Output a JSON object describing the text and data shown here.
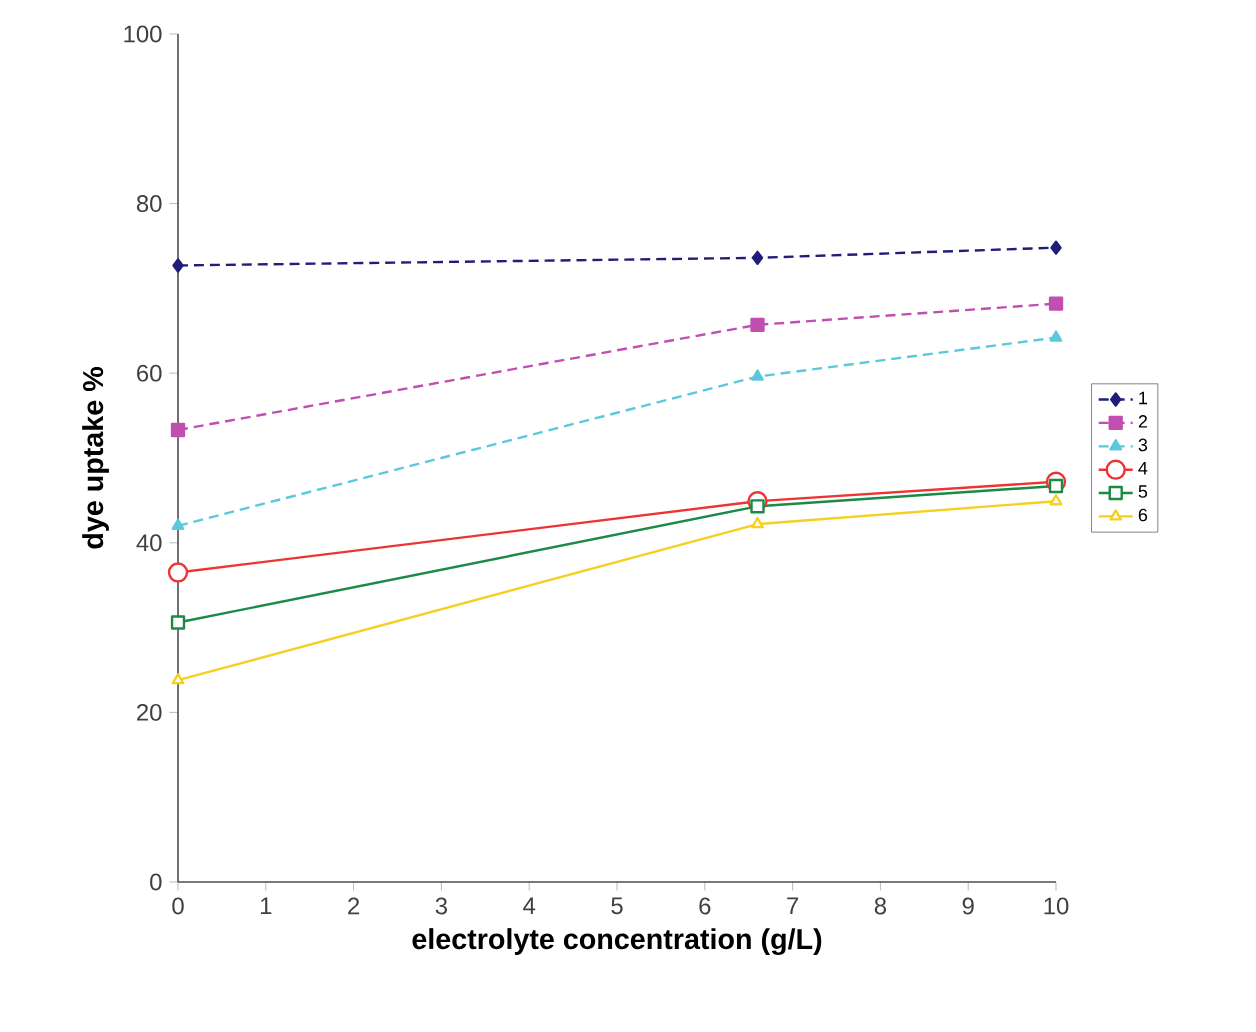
{
  "chart_data": {
    "type": "line",
    "xlabel": "electrolyte concentration (g/L)",
    "ylabel": "dye uptake %",
    "x": [
      0,
      6.6,
      10
    ],
    "xlim": [
      0,
      10
    ],
    "xticks": [
      0,
      1,
      2,
      3,
      4,
      5,
      6,
      7,
      8,
      9,
      10
    ],
    "ylim": [
      0,
      100
    ],
    "yticks": [
      0,
      20,
      40,
      60,
      80,
      100
    ],
    "grid": false,
    "legend": "right",
    "series": [
      {
        "name": "1",
        "color": "#1f1f7a",
        "values": [
          72.7,
          73.6,
          74.8
        ],
        "marker": "diamond",
        "line_style": "dashed"
      },
      {
        "name": "2",
        "color": "#c04fb0",
        "values": [
          53.3,
          65.7,
          68.2
        ],
        "marker": "square",
        "line_style": "dashed"
      },
      {
        "name": "3",
        "color": "#5bc8dc",
        "values": [
          42.0,
          59.6,
          64.2
        ],
        "marker": "triangle",
        "line_style": "dashed"
      },
      {
        "name": "4",
        "color": "#ee3333",
        "values": [
          36.5,
          44.9,
          47.2
        ],
        "marker": "circle",
        "line_style": "solid"
      },
      {
        "name": "5",
        "color": "#1a8a44",
        "values": [
          30.6,
          44.3,
          46.7
        ],
        "marker": "square",
        "line_style": "solid"
      },
      {
        "name": "6",
        "color": "#f5d020",
        "values": [
          23.8,
          42.2,
          44.9
        ],
        "marker": "triangle",
        "line_style": "solid"
      }
    ]
  }
}
